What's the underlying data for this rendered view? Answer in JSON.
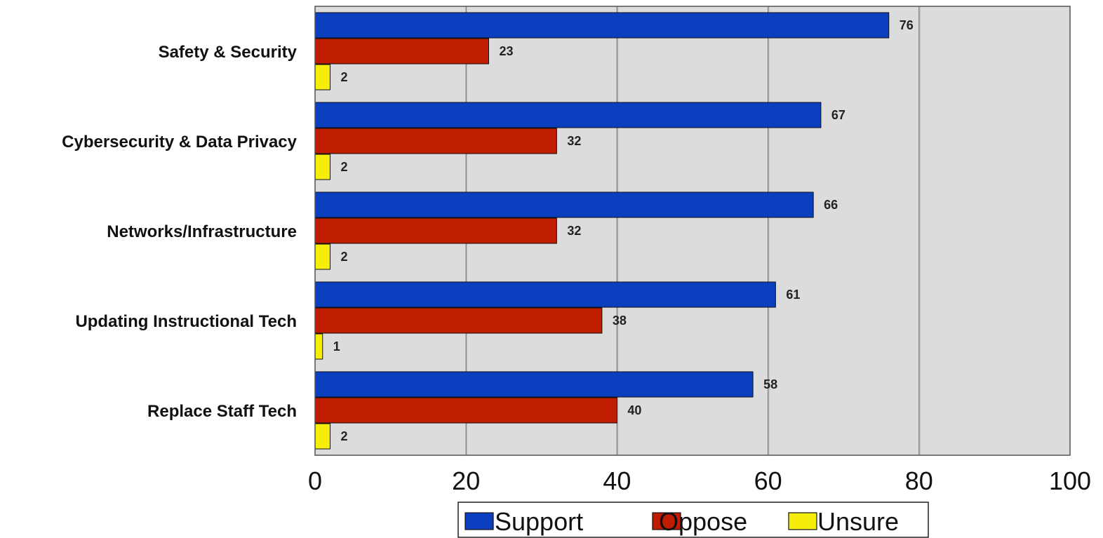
{
  "chart_data": {
    "type": "bar",
    "orientation": "horizontal",
    "categories": [
      "Safety & Security",
      "Cybersecurity & Data Privacy",
      "Networks/Infrastructure",
      "Updating Instructional Tech",
      "Replace Staff Tech"
    ],
    "series": [
      {
        "name": "Support",
        "color": "#0b3fbf",
        "values": [
          76,
          67,
          66,
          61,
          58
        ]
      },
      {
        "name": "Oppose",
        "color": "#c01d00",
        "values": [
          23,
          32,
          32,
          38,
          40
        ]
      },
      {
        "name": "Unsure",
        "color": "#f5ee0b",
        "values": [
          2,
          2,
          2,
          1,
          2
        ]
      }
    ],
    "xlim": [
      0,
      100
    ],
    "xticks": [
      "0",
      "20",
      "40",
      "60",
      "80",
      "100"
    ],
    "title": "",
    "xlabel": "",
    "ylabel": "",
    "grid": true,
    "legend_position": "bottom",
    "plot_background": "#dcdcdc"
  }
}
